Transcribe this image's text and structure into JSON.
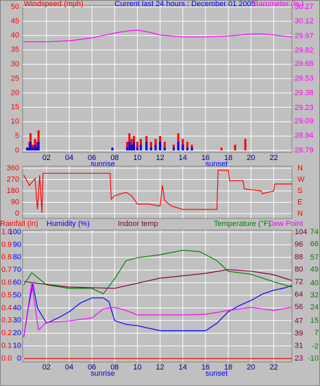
{
  "chart_data": [
    {
      "type": "bar",
      "title": "Current last 24 hours : December 01 2005",
      "ylabel": "Windspeed (mph)",
      "y2label": "Barometer (in.)",
      "xlim": [
        -0.1,
        23.6
      ],
      "xticks": [
        {
          "value": 2,
          "label": "02"
        },
        {
          "value": 4,
          "label": "04"
        },
        {
          "value": 6,
          "label": "06"
        },
        {
          "value": 8,
          "label": "08"
        },
        {
          "value": 10,
          "label": "10"
        },
        {
          "value": 12,
          "label": "12"
        },
        {
          "value": 14,
          "label": "14"
        },
        {
          "value": 16,
          "label": "16"
        },
        {
          "value": 18,
          "label": "18"
        },
        {
          "value": 20,
          "label": "20"
        },
        {
          "value": 22,
          "label": "22"
        }
      ],
      "annotations": [
        "sunrise",
        "sunset"
      ],
      "ylim": [
        0,
        50
      ],
      "yticks": [
        0,
        5,
        10,
        15,
        20,
        25,
        30,
        35,
        40,
        45,
        50
      ],
      "y2lim": [
        28.79,
        30.27
      ],
      "y2ticks": [
        28.79,
        28.94,
        29.09,
        29.23,
        29.38,
        29.53,
        29.68,
        29.82,
        29.97,
        30.12,
        30.27
      ],
      "grid": true,
      "series": [
        {
          "type": "bar",
          "color": "#ff0000",
          "x": [
            0.3,
            0.5,
            0.6,
            0.8,
            1.0,
            1.2,
            1.3,
            7.8,
            9.1,
            9.3,
            9.5,
            9.7,
            10.0,
            10.3,
            10.8,
            11.2,
            11.6,
            12.0,
            12.4,
            13.2,
            13.6,
            14.0,
            14.4,
            14.8,
            17.4,
            18.6,
            19.5
          ],
          "values": [
            1,
            3,
            6,
            2,
            4,
            3,
            7,
            1,
            3,
            6,
            4,
            5,
            3,
            4,
            5,
            3,
            4,
            5,
            3,
            2,
            6,
            4,
            3,
            2,
            1,
            2,
            4
          ]
        },
        {
          "type": "bar",
          "color": "#0000ff",
          "x": [
            0.3,
            0.5,
            0.6,
            0.8,
            1.0,
            1.2,
            1.3,
            7.8,
            9.1,
            9.3,
            9.5,
            9.7,
            10.0,
            10.3,
            10.8,
            11.2,
            11.6,
            12.0,
            12.4,
            13.2,
            13.6,
            14.0,
            14.4,
            14.8,
            17.4,
            18.6,
            19.5
          ],
          "values": [
            1,
            1,
            3,
            1,
            2,
            1,
            3,
            1,
            1,
            3,
            2,
            3,
            1,
            2,
            3,
            1,
            2,
            3,
            1,
            1,
            3,
            2,
            1,
            1,
            0,
            0,
            0
          ]
        },
        {
          "type": "line",
          "color": "#ff00ff",
          "axis": "y2",
          "x": [
            0,
            2,
            4,
            6,
            8,
            9,
            10,
            11,
            12,
            13,
            14,
            16,
            18,
            19,
            20,
            21,
            22,
            23.6
          ],
          "values": [
            29.91,
            29.91,
            29.92,
            29.95,
            30.0,
            30.02,
            30.03,
            30.01,
            29.98,
            29.97,
            29.96,
            29.96,
            29.97,
            29.98,
            29.99,
            29.99,
            29.98,
            29.96
          ]
        }
      ]
    },
    {
      "type": "line",
      "xlim": [
        -0.1,
        23.6
      ],
      "xticks": [
        2,
        4,
        6,
        8,
        10,
        12,
        14,
        16,
        18,
        20,
        22
      ],
      "ylim": [
        0,
        360
      ],
      "yticks": [
        0,
        90,
        180,
        270,
        360
      ],
      "y2lim": [
        0,
        360
      ],
      "y2ticks": [
        {
          "value": 0,
          "label": "N"
        },
        {
          "value": 90,
          "label": "E"
        },
        {
          "value": 180,
          "label": "S"
        },
        {
          "value": 270,
          "label": "W"
        },
        {
          "value": 360,
          "label": "N"
        }
      ],
      "grid": true,
      "series": [
        {
          "type": "line",
          "color": "#ff0000",
          "x": [
            0,
            0.5,
            1,
            1.2,
            1.4,
            1.6,
            1.7,
            7.6,
            7.7,
            8,
            9,
            9.5,
            10,
            11,
            12,
            12.2,
            12.4,
            13,
            14,
            16,
            17,
            17.1,
            18,
            18.1,
            19.3,
            19.4,
            20.9,
            21,
            22,
            22.1,
            23.6
          ],
          "values": [
            305,
            224,
            278,
            33,
            305,
            5,
            320,
            320,
            115,
            142,
            169,
            142,
            76,
            76,
            60,
            224,
            104,
            60,
            33,
            33,
            33,
            344,
            344,
            262,
            262,
            196,
            180,
            158,
            180,
            235,
            235
          ]
        }
      ]
    },
    {
      "type": "line",
      "xlim": [
        -0.1,
        23.6
      ],
      "xticks": [
        {
          "value": 2,
          "label": "02"
        },
        {
          "value": 4,
          "label": "04"
        },
        {
          "value": 6,
          "label": "06"
        },
        {
          "value": 8,
          "label": "08"
        },
        {
          "value": 10,
          "label": "10"
        },
        {
          "value": 12,
          "label": "12"
        },
        {
          "value": 14,
          "label": "14"
        },
        {
          "value": 16,
          "label": "16"
        },
        {
          "value": 18,
          "label": "18"
        },
        {
          "value": 20,
          "label": "20"
        },
        {
          "value": 22,
          "label": "22"
        }
      ],
      "annotations": [
        "sunrise",
        "sunset"
      ],
      "ylim": [
        0,
        100
      ],
      "yticks": [
        0,
        10,
        20,
        30,
        40,
        50,
        60,
        70,
        80,
        90,
        100
      ],
      "y2lim": [
        -10,
        74
      ],
      "y2ticks": [
        -10,
        -2,
        7,
        15,
        24,
        32,
        40,
        49,
        57,
        66,
        74
      ],
      "y3lim": [
        0,
        1
      ],
      "y3ticks": [
        {
          "value": 0,
          "label": "0.0"
        },
        {
          "value": 0.1,
          "label": "0.1"
        },
        {
          "value": 0.2,
          "label": "0.2"
        },
        {
          "value": 0.3,
          "label": "0.3"
        },
        {
          "value": 0.4,
          "label": "0.4"
        },
        {
          "value": 0.5,
          "label": "0.5"
        },
        {
          "value": 0.6,
          "label": "0.6"
        },
        {
          "value": 0.7,
          "label": "0.7"
        },
        {
          "value": 0.8,
          "label": "0.8"
        },
        {
          "value": 0.9,
          "label": "0.9"
        },
        {
          "value": 1,
          "label": "1.0"
        }
      ],
      "y4lim": [
        23,
        104
      ],
      "y4ticks": [
        23,
        31,
        39,
        47,
        56,
        64,
        72,
        80,
        88,
        96,
        104
      ],
      "grid": true,
      "series": [
        {
          "name": "Rainfall (in)",
          "color": "#ff0000",
          "axis": "y3",
          "x": [
            0,
            23.6
          ],
          "values": [
            0,
            0
          ]
        },
        {
          "name": "Humidity (%)",
          "color": "#0000ff",
          "x": [
            0,
            0.4,
            0.8,
            1.2,
            2,
            3,
            4,
            5,
            6,
            7,
            7.5,
            8,
            9,
            10,
            12,
            14,
            16,
            17,
            18,
            19,
            20,
            21,
            22,
            23,
            23.6
          ],
          "values": [
            17,
            40,
            59,
            40,
            28,
            32,
            37,
            44,
            48,
            48,
            45,
            30,
            27,
            26,
            22,
            22,
            22,
            28,
            37,
            42,
            46,
            51,
            54,
            56,
            58
          ]
        },
        {
          "name": "Indoor temp",
          "color": "#800040",
          "axis": "y4",
          "x": [
            0,
            4,
            8,
            12,
            16,
            18,
            20,
            22,
            23.6
          ],
          "values": [
            72.3,
            68.8,
            68,
            74.5,
            77.6,
            80,
            79,
            76.7,
            73
          ]
        },
        {
          "name": "Temperature (°F)",
          "color": "#008000",
          "axis": "y2",
          "x": [
            0,
            0.7,
            2,
            4,
            6,
            7,
            8,
            9,
            10,
            12,
            14,
            15.5,
            17,
            18,
            20,
            22,
            23.6
          ],
          "values": [
            38.9,
            47,
            39,
            36.6,
            36.6,
            33,
            43,
            55,
            57,
            59,
            62,
            61,
            55,
            48,
            46,
            41,
            37.5
          ]
        },
        {
          "name": "Dew Point",
          "color": "#ff00ff",
          "axis": "y2",
          "x": [
            0,
            0.7,
            1.3,
            2,
            4,
            6,
            7,
            8,
            9,
            10,
            12,
            14,
            16,
            17,
            18,
            20,
            22,
            23.6
          ],
          "values": [
            4.6,
            40,
            9,
            14,
            15,
            17,
            23,
            24,
            22,
            19,
            19,
            19,
            19.5,
            20.6,
            22,
            24,
            22,
            24
          ]
        }
      ]
    }
  ]
}
